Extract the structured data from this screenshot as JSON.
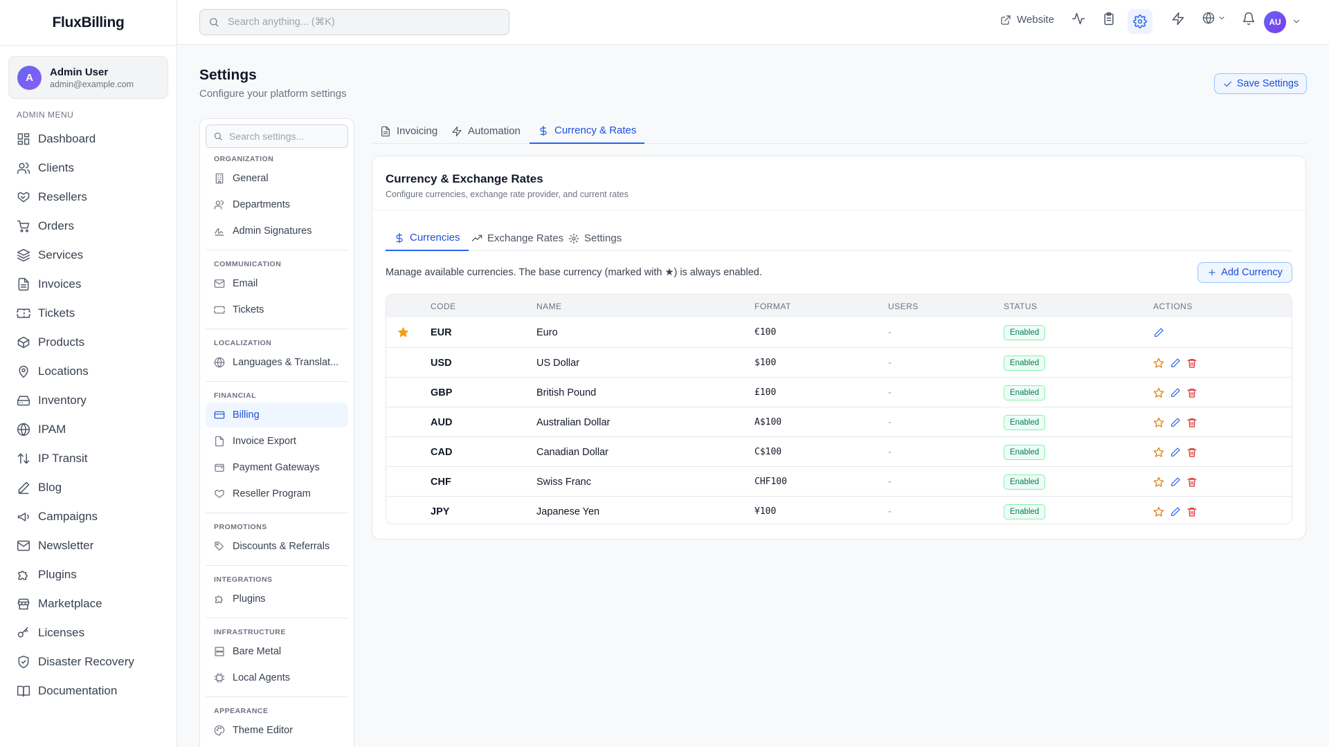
{
  "brand": "FluxBilling",
  "user": {
    "initial": "A",
    "name": "Admin User",
    "email": "admin@example.com"
  },
  "menu_title": "ADMIN MENU",
  "menu": [
    {
      "label": "Dashboard",
      "icon": "dashboard-icon"
    },
    {
      "label": "Clients",
      "icon": "users-icon"
    },
    {
      "label": "Resellers",
      "icon": "handshake-icon"
    },
    {
      "label": "Orders",
      "icon": "cart-icon"
    },
    {
      "label": "Services",
      "icon": "layers-icon"
    },
    {
      "label": "Invoices",
      "icon": "file-icon"
    },
    {
      "label": "Tickets",
      "icon": "ticket-icon"
    },
    {
      "label": "Products",
      "icon": "package-icon"
    },
    {
      "label": "Locations",
      "icon": "map-pin-icon"
    },
    {
      "label": "Inventory",
      "icon": "hard-drive-icon"
    },
    {
      "label": "IPAM",
      "icon": "globe-icon"
    },
    {
      "label": "IP Transit",
      "icon": "arrows-updown-icon"
    },
    {
      "label": "Blog",
      "icon": "pen-icon"
    },
    {
      "label": "Campaigns",
      "icon": "megaphone-icon"
    },
    {
      "label": "Newsletter",
      "icon": "mail-icon"
    },
    {
      "label": "Plugins",
      "icon": "puzzle-icon"
    },
    {
      "label": "Marketplace",
      "icon": "store-icon"
    },
    {
      "label": "Licenses",
      "icon": "key-icon"
    },
    {
      "label": "Disaster Recovery",
      "icon": "shield-icon"
    },
    {
      "label": "Documentation",
      "icon": "book-icon"
    }
  ],
  "topbar": {
    "search_placeholder": "Search anything... (⌘K)",
    "website_label": "Website",
    "avatar_initials": "AU"
  },
  "page": {
    "title": "Settings",
    "subtitle": "Configure your platform settings",
    "save_label": "Save Settings"
  },
  "settings_nav": {
    "search_placeholder": "Search settings...",
    "groups": {
      "organization": "ORGANIZATION",
      "communication": "COMMUNICATION",
      "localization": "LOCALIZATION",
      "financial": "FINANCIAL",
      "promotions": "PROMOTIONS",
      "integrations": "INTEGRATIONS",
      "infrastructure": "INFRASTRUCTURE",
      "appearance": "APPEARANCE"
    },
    "items": {
      "general": "General",
      "departments": "Departments",
      "admin_signatures": "Admin Signatures",
      "email": "Email",
      "tickets": "Tickets",
      "languages": "Languages & Translat...",
      "billing": "Billing",
      "invoice_export": "Invoice Export",
      "payment_gateways": "Payment Gateways",
      "reseller_program": "Reseller Program",
      "discounts": "Discounts & Referrals",
      "plugins": "Plugins",
      "bare_metal": "Bare Metal",
      "local_agents": "Local Agents",
      "theme_editor": "Theme Editor"
    },
    "active": "Billing"
  },
  "top_tabs": [
    "Invoicing",
    "Automation",
    "Currency & Rates"
  ],
  "active_top_tab": "Currency & Rates",
  "card": {
    "title": "Currency & Exchange Rates",
    "subtitle": "Configure currencies, exchange rate provider, and current rates",
    "tabs": [
      "Currencies",
      "Exchange Rates",
      "Settings"
    ],
    "active_tab": "Currencies",
    "description": "Manage available currencies. The base currency (marked with ★) is always enabled.",
    "add_label": "Add Currency"
  },
  "table": {
    "headers": [
      "CODE",
      "NAME",
      "FORMAT",
      "USERS",
      "STATUS",
      "ACTIONS"
    ],
    "rows": [
      {
        "code": "EUR",
        "name": "Euro",
        "format": "€100",
        "users": "-",
        "status": "Enabled",
        "base": true
      },
      {
        "code": "USD",
        "name": "US Dollar",
        "format": "$100",
        "users": "-",
        "status": "Enabled",
        "base": false
      },
      {
        "code": "GBP",
        "name": "British Pound",
        "format": "£100",
        "users": "-",
        "status": "Enabled",
        "base": false
      },
      {
        "code": "AUD",
        "name": "Australian Dollar",
        "format": "A$100",
        "users": "-",
        "status": "Enabled",
        "base": false
      },
      {
        "code": "CAD",
        "name": "Canadian Dollar",
        "format": "C$100",
        "users": "-",
        "status": "Enabled",
        "base": false
      },
      {
        "code": "CHF",
        "name": "Swiss Franc",
        "format": "CHF100",
        "users": "-",
        "status": "Enabled",
        "base": false
      },
      {
        "code": "JPY",
        "name": "Japanese Yen",
        "format": "¥100",
        "users": "-",
        "status": "Enabled",
        "base": false
      }
    ]
  },
  "colors": {
    "accent": "#2563eb",
    "success": "#047857",
    "star": "#f59e0b",
    "danger": "#dc2626"
  }
}
